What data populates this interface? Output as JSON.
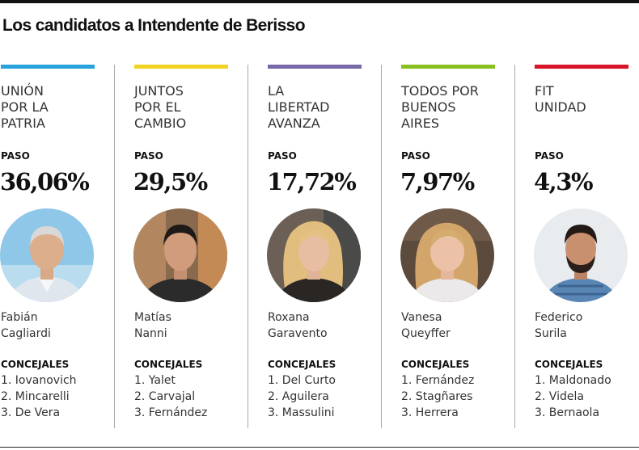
{
  "title": "Los candidatos a Intendente de Berisso",
  "columns": [
    {
      "party": "UNIÓN\nPOR LA\nPATRIA",
      "color": "#29a3dc",
      "paso_label": "PASO",
      "percent": "36,06%",
      "candidate": "Fabián\nCagliardi",
      "concejales_label": "CONCEJALES",
      "concejales": [
        "1. Iovanovich",
        "2. Mincarelli",
        "3. De Vera"
      ]
    },
    {
      "party": "JUNTOS\nPOR EL\nCAMBIO",
      "color": "#f2d324",
      "paso_label": "PASO",
      "percent": "29,5%",
      "candidate": "Matías\nNanni",
      "concejales_label": "CONCEJALES",
      "concejales": [
        "1. Yalet",
        "2. Carvajal",
        "3. Fernández"
      ]
    },
    {
      "party": "LA\nLIBERTAD\nAVANZA",
      "color": "#7a69a8",
      "paso_label": "PASO",
      "percent": "17,72%",
      "candidate": "Roxana\nGaravento",
      "concejales_label": "CONCEJALES",
      "concejales": [
        "1. Del Curto",
        "2. Aguilera",
        "3. Massulini"
      ]
    },
    {
      "party": "TODOS POR\nBUENOS\nAIRES",
      "color": "#8bc11f",
      "paso_label": "PASO",
      "percent": "7,97%",
      "candidate": "Vanesa\nQueyffer",
      "concejales_label": "CONCEJALES",
      "concejales": [
        "1. Fernández",
        "2. Stagñares",
        "3. Herrera"
      ]
    },
    {
      "party": "FIT\nUNIDAD",
      "color": "#d6142a",
      "paso_label": "PASO",
      "percent": "4,3%",
      "candidate": "Federico\nSurila",
      "concejales_label": "CONCEJALES",
      "concejales": [
        "1. Maldonado",
        "2. Videla",
        "3. Bernaola"
      ]
    }
  ]
}
